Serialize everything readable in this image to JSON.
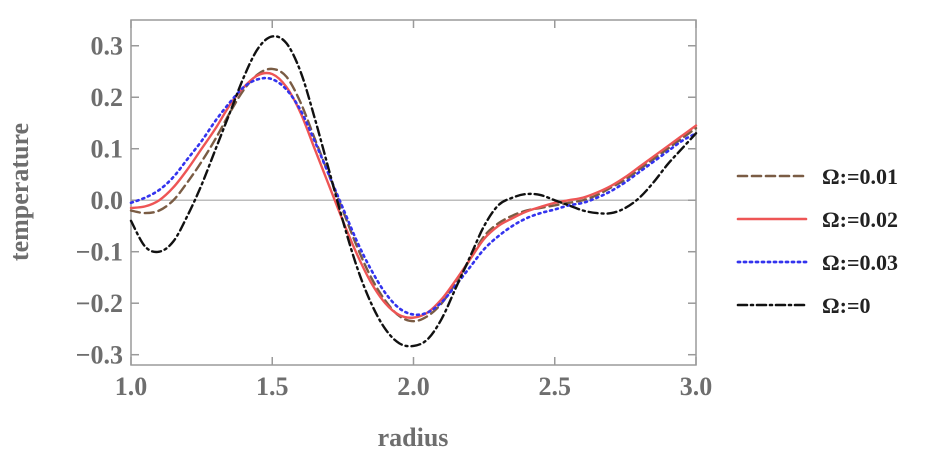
{
  "chart_data": {
    "type": "line",
    "title": "",
    "xlabel": "radius",
    "ylabel": "temperature",
    "xlim": [
      1.0,
      3.0
    ],
    "ylim": [
      -0.32,
      0.35
    ],
    "xticks": [
      1.0,
      1.5,
      2.0,
      2.5,
      3.0
    ],
    "xtick_labels": [
      "1.0",
      "1.5",
      "2.0",
      "2.5",
      "3.0"
    ],
    "yticks": [
      -0.3,
      -0.2,
      -0.1,
      0.0,
      0.1,
      0.2,
      0.3
    ],
    "ytick_labels": [
      "−0.3",
      "−0.2",
      "−0.1",
      "0.0",
      "0.1",
      "0.2",
      "0.3"
    ],
    "grid": false,
    "zero_line": true,
    "legend_position": "right",
    "series": [
      {
        "name": "Ω:=0.01",
        "color": "#7a5c44",
        "dash": "dashed",
        "x": [
          1.0,
          1.05,
          1.1,
          1.15,
          1.2,
          1.25,
          1.3,
          1.35,
          1.4,
          1.45,
          1.5,
          1.55,
          1.6,
          1.65,
          1.7,
          1.75,
          1.8,
          1.85,
          1.9,
          1.95,
          2.0,
          2.05,
          2.1,
          2.15,
          2.2,
          2.25,
          2.3,
          2.35,
          2.4,
          2.45,
          2.5,
          2.55,
          2.6,
          2.65,
          2.7,
          2.75,
          2.8,
          2.85,
          2.9,
          2.95,
          3.0
        ],
        "y": [
          -0.02,
          -0.025,
          -0.02,
          0.0,
          0.035,
          0.075,
          0.12,
          0.17,
          0.215,
          0.245,
          0.255,
          0.24,
          0.19,
          0.12,
          0.05,
          -0.02,
          -0.09,
          -0.15,
          -0.195,
          -0.225,
          -0.235,
          -0.225,
          -0.2,
          -0.16,
          -0.115,
          -0.07,
          -0.045,
          -0.03,
          -0.02,
          -0.015,
          -0.01,
          -0.005,
          0.0,
          0.01,
          0.025,
          0.04,
          0.06,
          0.08,
          0.1,
          0.12,
          0.14
        ]
      },
      {
        "name": "Ω:=0.02",
        "color": "#ee5555",
        "dash": "solid",
        "x": [
          1.0,
          1.05,
          1.1,
          1.15,
          1.2,
          1.25,
          1.3,
          1.35,
          1.4,
          1.45,
          1.5,
          1.55,
          1.6,
          1.65,
          1.7,
          1.75,
          1.8,
          1.85,
          1.9,
          1.95,
          2.0,
          2.05,
          2.1,
          2.15,
          2.2,
          2.25,
          2.3,
          2.35,
          2.4,
          2.45,
          2.5,
          2.55,
          2.6,
          2.65,
          2.7,
          2.75,
          2.8,
          2.85,
          2.9,
          2.95,
          3.0
        ],
        "y": [
          -0.015,
          -0.012,
          0.0,
          0.025,
          0.06,
          0.1,
          0.14,
          0.185,
          0.22,
          0.243,
          0.245,
          0.22,
          0.17,
          0.1,
          0.03,
          -0.04,
          -0.105,
          -0.16,
          -0.2,
          -0.223,
          -0.228,
          -0.218,
          -0.192,
          -0.155,
          -0.115,
          -0.075,
          -0.05,
          -0.035,
          -0.022,
          -0.013,
          -0.005,
          0.0,
          0.005,
          0.015,
          0.028,
          0.045,
          0.065,
          0.085,
          0.105,
          0.125,
          0.145
        ]
      },
      {
        "name": "Ω:=0.03",
        "color": "#3333ee",
        "dash": "dotted",
        "x": [
          1.0,
          1.05,
          1.1,
          1.15,
          1.2,
          1.25,
          1.3,
          1.35,
          1.4,
          1.45,
          1.5,
          1.55,
          1.6,
          1.65,
          1.7,
          1.75,
          1.8,
          1.85,
          1.9,
          1.95,
          2.0,
          2.05,
          2.1,
          2.15,
          2.2,
          2.25,
          2.3,
          2.35,
          2.4,
          2.45,
          2.5,
          2.55,
          2.6,
          2.65,
          2.7,
          2.75,
          2.8,
          2.85,
          2.9,
          2.95,
          3.0
        ],
        "y": [
          -0.005,
          0.005,
          0.02,
          0.045,
          0.08,
          0.115,
          0.155,
          0.19,
          0.22,
          0.235,
          0.235,
          0.215,
          0.175,
          0.115,
          0.05,
          -0.015,
          -0.08,
          -0.135,
          -0.18,
          -0.21,
          -0.222,
          -0.218,
          -0.198,
          -0.165,
          -0.13,
          -0.095,
          -0.07,
          -0.05,
          -0.035,
          -0.025,
          -0.018,
          -0.01,
          -0.005,
          0.005,
          0.018,
          0.035,
          0.055,
          0.075,
          0.095,
          0.115,
          0.13
        ]
      },
      {
        "name": "Ω:=0",
        "color": "#111111",
        "dash": "dashdot",
        "x": [
          1.0,
          1.05,
          1.1,
          1.15,
          1.2,
          1.25,
          1.3,
          1.35,
          1.4,
          1.45,
          1.5,
          1.55,
          1.6,
          1.65,
          1.7,
          1.75,
          1.8,
          1.85,
          1.9,
          1.95,
          2.0,
          2.05,
          2.1,
          2.15,
          2.2,
          2.25,
          2.3,
          2.35,
          2.4,
          2.45,
          2.5,
          2.55,
          2.6,
          2.65,
          2.7,
          2.75,
          2.8,
          2.85,
          2.9,
          2.95,
          3.0
        ],
        "y": [
          -0.04,
          -0.09,
          -0.1,
          -0.08,
          -0.03,
          0.03,
          0.1,
          0.17,
          0.24,
          0.295,
          0.318,
          0.305,
          0.25,
          0.16,
          0.06,
          -0.04,
          -0.13,
          -0.2,
          -0.25,
          -0.278,
          -0.283,
          -0.27,
          -0.23,
          -0.17,
          -0.11,
          -0.05,
          -0.01,
          0.005,
          0.012,
          0.01,
          0.0,
          -0.01,
          -0.02,
          -0.025,
          -0.025,
          -0.015,
          0.005,
          0.035,
          0.07,
          0.1,
          0.13
        ]
      }
    ]
  }
}
